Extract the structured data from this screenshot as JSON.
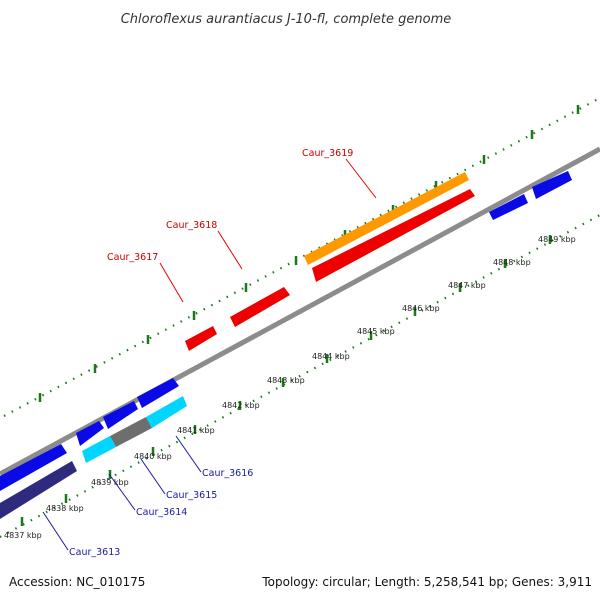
{
  "title": "Chloroflexus aurantiacus J-10-fl, complete genome",
  "footer": {
    "accession": "Accession: NC_010175",
    "summary": "Topology: circular; Length: 5,258,541 bp; Genes: 3,911"
  },
  "colors": {
    "backbone": "#8c8c8c",
    "tick": "#1a7a1a",
    "red_gene": "#ee0000",
    "orange_gene": "#ff9900",
    "blue_gene": "#0a0ae6",
    "cyan_gene": "#00d5ff",
    "gray_gene": "#6e6e6e",
    "navy_gene": "#2e2a7e"
  },
  "scale_labels": [
    "4837 kbp",
    "4838 kbp",
    "4839 kbp",
    "4840 kbp",
    "4841 kbp",
    "4842 kbp",
    "4843 kbp",
    "4844 kbp",
    "4845 kbp",
    "4846 kbp",
    "4847 kbp",
    "4848 kbp",
    "4849 kbp"
  ],
  "gene_labels": {
    "caur_3619": "Caur_3619",
    "caur_3618": "Caur_3618",
    "caur_3617": "Caur_3617",
    "caur_3616": "Caur_3616",
    "caur_3615": "Caur_3615",
    "caur_3614": "Caur_3614",
    "caur_3613": "Caur_3613"
  }
}
